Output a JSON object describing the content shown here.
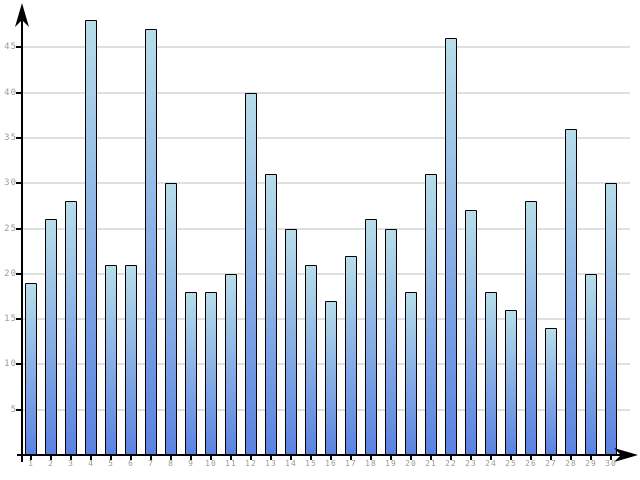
{
  "chart_data": {
    "type": "bar",
    "title": "",
    "xlabel": "",
    "ylabel": "",
    "categories": [
      "1",
      "2",
      "3",
      "4",
      "5",
      "6",
      "7",
      "8",
      "9",
      "10",
      "11",
      "12",
      "13",
      "14",
      "15",
      "16",
      "17",
      "18",
      "19",
      "20",
      "21",
      "22",
      "23",
      "24",
      "25",
      "26",
      "27",
      "28",
      "29",
      "30"
    ],
    "values": [
      19,
      26,
      28,
      48,
      21,
      21,
      47,
      30,
      18,
      18,
      20,
      40,
      31,
      25,
      21,
      17,
      22,
      26,
      25,
      18,
      31,
      46,
      27,
      18,
      16,
      28,
      14,
      36,
      20,
      30
    ],
    "yticks": [
      5,
      10,
      15,
      20,
      25,
      30,
      35,
      40,
      45
    ],
    "ylim": [
      0,
      50
    ],
    "grid": true,
    "legend": "none",
    "colors": {
      "background": "#ffffff",
      "bar_gradient_top": "#b7dde9",
      "bar_gradient_bottom": "#5b82e0",
      "bar_border": "#000000",
      "gridline": "#e0e0e0",
      "axis": "#000000",
      "tick_label": "#999999"
    }
  }
}
